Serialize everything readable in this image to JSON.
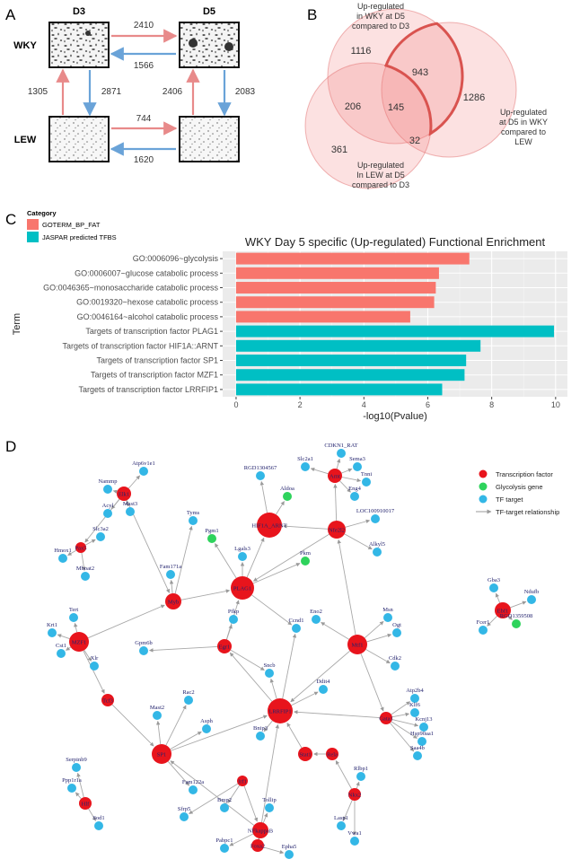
{
  "panel_letters": [
    "A",
    "B",
    "C",
    "D"
  ],
  "panel_a": {
    "columns": [
      "D3",
      "D5"
    ],
    "rows": [
      "WKY",
      "LEW"
    ],
    "counts": [
      2410,
      1566,
      1305,
      2871,
      2406,
      2083,
      744,
      1620
    ]
  },
  "panel_b": {
    "sets": [
      {
        "label": [
          "Up-regulated",
          "in WKY at D5",
          "compared to D3"
        ]
      },
      {
        "label": [
          "Up-regulated",
          "at D5 in WKY",
          "compared to",
          "LEW"
        ]
      },
      {
        "label": [
          "Up-regulated",
          "In LEW at D5",
          "compared to D3"
        ]
      }
    ],
    "counts": [
      1116,
      943,
      1286,
      206,
      145,
      361,
      32
    ]
  },
  "chart_data": {
    "type": "bar",
    "orientation": "horizontal",
    "title": "WKY Day 5 specific (Up-regulated) Functional Enrichment",
    "xlabel": "-log10(Pvalue)",
    "ylabel": "Term",
    "legend_title": "Category",
    "categories": [
      "GO:0006096~glycolysis",
      "GO:0006007~glucose catabolic process",
      "GO:0046365~monosaccharide catabolic process",
      "GO:0019320~hexose catabolic process",
      "GO:0046164~alcohol catabolic process",
      "Targets of transcription factor PLAG1",
      "Targets of transcription factor HIF1A::ARNT",
      "Targets of transcription factor SP1",
      "Targets of transcription factor MZF1",
      "Targets of transcription factor LRRFIP1"
    ],
    "series": [
      {
        "name": "GOTERM_BP_FAT",
        "color": "#f8766d",
        "values": [
          7.3,
          6.35,
          6.25,
          6.2,
          5.45,
          null,
          null,
          null,
          null,
          null
        ]
      },
      {
        "name": "JASPAR predicted TFBS",
        "color": "#00bfc4",
        "values": [
          null,
          null,
          null,
          null,
          null,
          9.95,
          7.65,
          7.2,
          7.15,
          6.45
        ]
      }
    ],
    "xlim": [
      -0.42,
      10.37
    ],
    "xticks": [
      0,
      2,
      4,
      6,
      8,
      10
    ],
    "grid": true
  },
  "network": {
    "legend": [
      {
        "label": "Transcription factor",
        "color": "#e8141c"
      },
      {
        "label": "Glycolysis gene",
        "color": "#2ed35c"
      },
      {
        "label": "TF target",
        "color": "#33b7e6"
      },
      {
        "label": "TF-target relationship",
        "color": "#999999"
      }
    ],
    "nodes": [
      {
        "label": "LRRFIP1",
        "color": "#e8141c"
      },
      {
        "label": "HIF1A_ARNT",
        "color": "#e8141c"
      },
      {
        "label": "PLAG1",
        "color": "#e8141c"
      },
      {
        "label": "SP1",
        "color": "#e8141c"
      },
      {
        "label": "MZF1",
        "color": "#e8141c"
      },
      {
        "label": "Mtf1",
        "color": "#e8141c"
      },
      {
        "label": "Ebf1",
        "color": "#e8141c"
      },
      {
        "label": "Nfe2l2",
        "color": "#e8141c"
      },
      {
        "label": "Arnt",
        "color": "#e8141c"
      },
      {
        "label": "NFkappaB",
        "color": "#e8141c"
      },
      {
        "label": "Myb",
        "color": "#e8141c"
      },
      {
        "label": "Egr1",
        "color": "#e8141c"
      },
      {
        "label": "Tcf3",
        "color": "#e8141c"
      },
      {
        "label": "Stat1",
        "color": "#e8141c"
      },
      {
        "label": "Rela",
        "color": "#e8141c"
      },
      {
        "label": "Hlf",
        "color": "#e8141c"
      },
      {
        "label": "Gata1",
        "color": "#e8141c"
      },
      {
        "label": "Nkx2",
        "color": "#e8141c"
      },
      {
        "label": "Foxa2",
        "color": "#e8141c"
      },
      {
        "label": "Pax5",
        "color": "#e8141c"
      },
      {
        "label": "Elk1",
        "color": "#e8141c"
      },
      {
        "label": "Irf1",
        "color": "#e8141c"
      },
      {
        "label": "Pgm1",
        "color": "#2ed35c"
      },
      {
        "label": "Aldoa",
        "color": "#2ed35c"
      },
      {
        "label": "Pkm",
        "color": "#2ed35c"
      },
      {
        "label": "RGD1359508",
        "color": "#2ed35c"
      },
      {
        "label": "CDKN1_RAT",
        "color": "#33b7e6"
      },
      {
        "label": "Sema3",
        "color": "#33b7e6"
      },
      {
        "label": "Tnni",
        "color": "#33b7e6"
      },
      {
        "label": "Eng4",
        "color": "#33b7e6"
      },
      {
        "label": "Slc2a1",
        "color": "#33b7e6"
      },
      {
        "label": "RGD1304567",
        "color": "#33b7e6"
      },
      {
        "label": "Atp6v1e1",
        "color": "#33b7e6"
      },
      {
        "label": "Nammp",
        "color": "#33b7e6"
      },
      {
        "label": "Acyl",
        "color": "#33b7e6"
      },
      {
        "label": "Slc3a2",
        "color": "#33b7e6"
      },
      {
        "label": "Hmox1",
        "color": "#33b7e6"
      },
      {
        "label": "Mboat2",
        "color": "#33b7e6"
      },
      {
        "label": "Fam171a",
        "color": "#33b7e6"
      },
      {
        "label": "LOC100910017",
        "color": "#33b7e6"
      },
      {
        "label": "Alkyl5",
        "color": "#33b7e6"
      },
      {
        "label": "Tyms",
        "color": "#33b7e6"
      },
      {
        "label": "Rac2",
        "color": "#33b7e6"
      },
      {
        "label": "Mast2",
        "color": "#33b7e6"
      },
      {
        "label": "Gpm6b",
        "color": "#33b7e6"
      },
      {
        "label": "Msn",
        "color": "#33b7e6"
      },
      {
        "label": "Ogt",
        "color": "#33b7e6"
      },
      {
        "label": "Gba3",
        "color": "#33b7e6"
      },
      {
        "label": "Ndufb",
        "color": "#33b7e6"
      },
      {
        "label": "Fcer1",
        "color": "#33b7e6"
      },
      {
        "label": "Atp2b4",
        "color": "#33b7e6"
      },
      {
        "label": "Klf6",
        "color": "#33b7e6"
      },
      {
        "label": "Kcnj13",
        "color": "#33b7e6"
      },
      {
        "label": "Hsp90aa1",
        "color": "#33b7e6"
      },
      {
        "label": "Saa4b",
        "color": "#33b7e6"
      },
      {
        "label": "Lasp1",
        "color": "#33b7e6"
      },
      {
        "label": "Rlbp1",
        "color": "#33b7e6"
      },
      {
        "label": "Serpinb9",
        "color": "#33b7e6"
      },
      {
        "label": "Ppp1r1a",
        "color": "#33b7e6"
      },
      {
        "label": "Sod1",
        "color": "#33b7e6"
      },
      {
        "label": "Bmp2",
        "color": "#33b7e6"
      },
      {
        "label": "Sfrp5",
        "color": "#33b7e6"
      },
      {
        "label": "Pabpc1",
        "color": "#33b7e6"
      },
      {
        "label": "Epha5",
        "color": "#33b7e6"
      },
      {
        "label": "Fam122a",
        "color": "#33b7e6"
      },
      {
        "label": "Krt1",
        "color": "#33b7e6"
      },
      {
        "label": "Cst1",
        "color": "#33b7e6"
      },
      {
        "label": "Xlr",
        "color": "#33b7e6"
      },
      {
        "label": "Tert",
        "color": "#33b7e6"
      },
      {
        "label": "Lgals3",
        "color": "#33b7e6"
      },
      {
        "label": "Tollip",
        "color": "#33b7e6"
      },
      {
        "label": "Vwa1",
        "color": "#33b7e6"
      },
      {
        "label": "Ccnd1",
        "color": "#33b7e6"
      },
      {
        "label": "Ddit4",
        "color": "#33b7e6"
      },
      {
        "label": "Mast3",
        "color": "#33b7e6"
      },
      {
        "label": "Cdk2",
        "color": "#33b7e6"
      },
      {
        "label": "Sncb",
        "color": "#33b7e6"
      },
      {
        "label": "Asph",
        "color": "#33b7e6"
      },
      {
        "label": "Bnip3",
        "color": "#33b7e6"
      },
      {
        "label": "Pfkp",
        "color": "#33b7e6"
      },
      {
        "label": "Eno2",
        "color": "#33b7e6"
      }
    ]
  }
}
